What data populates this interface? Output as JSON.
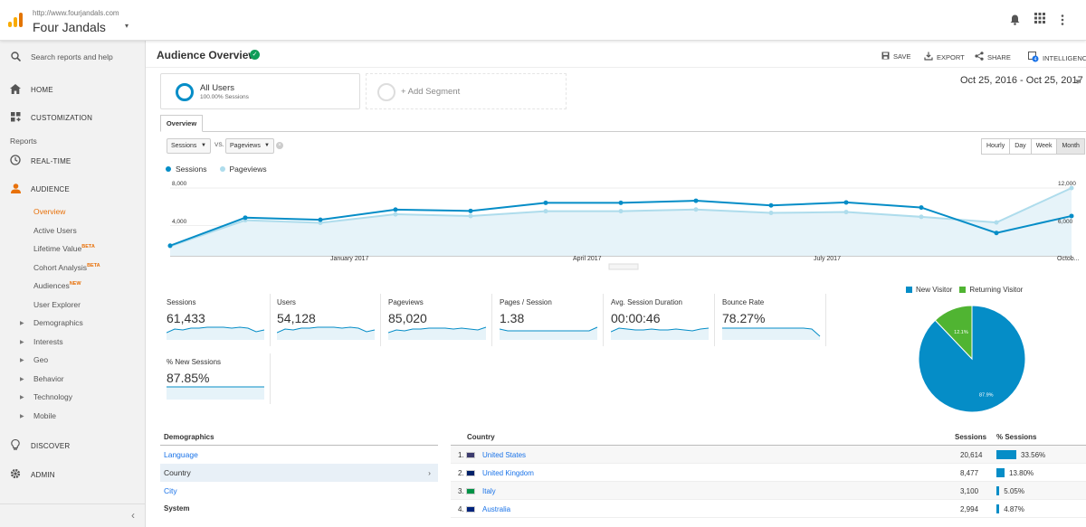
{
  "colors": {
    "primary": "#058dc7",
    "secondary": "#aedcec",
    "returning": "#50b432",
    "accent": "#e8710a"
  },
  "topbar": {
    "account_url": "http://www.fourjandals.com",
    "account_name": "Four Jandals",
    "caret": "▾",
    "icons": [
      "bell-icon",
      "apps-icon",
      "kebab-icon"
    ]
  },
  "search": {
    "placeholder": "Search reports and help"
  },
  "sidebar": {
    "home": "HOME",
    "customization": "CUSTOMIZATION",
    "reports_label": "Reports",
    "realtime": "REAL-TIME",
    "audience": "AUDIENCE",
    "audience_items": [
      {
        "label": "Overview",
        "badge": ""
      },
      {
        "label": "Active Users",
        "badge": ""
      },
      {
        "label": "Lifetime Value",
        "badge": "BETA"
      },
      {
        "label": "Cohort Analysis",
        "badge": "BETA"
      },
      {
        "label": "Audiences",
        "badge": "NEW"
      },
      {
        "label": "User Explorer",
        "badge": ""
      }
    ],
    "groups": [
      "Demographics",
      "Interests",
      "Geo",
      "Behavior",
      "Technology",
      "Mobile"
    ],
    "discover": "DISCOVER",
    "admin": "ADMIN",
    "collapse_glyph": "‹"
  },
  "header": {
    "title": "Audience Overview",
    "actions": {
      "save": "SAVE",
      "export": "EXPORT",
      "share": "SHARE",
      "intelligence": "INTELLIGENCE"
    }
  },
  "segment": {
    "name": "All Users",
    "sub": "100.00% Sessions",
    "add_label": "+ Add Segment"
  },
  "date_range": "Oct 25, 2016 - Oct 25, 2017",
  "tab": "Overview",
  "metric_select": {
    "primary": "Sessions",
    "vs": "VS.",
    "secondary": "Pageviews"
  },
  "granularity": [
    {
      "label": "Hourly",
      "active": false
    },
    {
      "label": "Day",
      "active": false
    },
    {
      "label": "Week",
      "active": false
    },
    {
      "label": "Month",
      "active": true
    }
  ],
  "chart_data": {
    "type": "line",
    "x": [
      "Oct 2016",
      "Nov 2016",
      "Dec 2016",
      "Jan 2017",
      "Feb 2017",
      "Mar 2017",
      "Apr 2017",
      "May 2017",
      "Jun 2017",
      "Jul 2017",
      "Aug 2017",
      "Sep 2017",
      "Oct 2017"
    ],
    "series": [
      {
        "name": "Sessions",
        "axis": "left",
        "values": [
          1200,
          4500,
          4250,
          5450,
          5300,
          6250,
          6250,
          6500,
          5950,
          6300,
          5700,
          2700,
          4700
        ]
      },
      {
        "name": "Pageviews",
        "axis": "right",
        "values": [
          1700,
          6300,
          5850,
          7350,
          7050,
          7900,
          7900,
          8200,
          7600,
          7750,
          6900,
          5900,
          12000
        ]
      }
    ],
    "left_axis": {
      "ticks": [
        "8,000",
        "4,000"
      ],
      "max": 8000,
      "min": 0
    },
    "right_axis": {
      "ticks": [
        "12,000",
        "6,000"
      ],
      "max": 12000,
      "min": 0
    },
    "x_tick_labels": [
      "January 2017",
      "April 2017",
      "July 2017",
      "Octob..."
    ]
  },
  "scorecards": [
    {
      "label": "Sessions",
      "value": "61,433"
    },
    {
      "label": "Users",
      "value": "54,128"
    },
    {
      "label": "Pageviews",
      "value": "85,020"
    },
    {
      "label": "Pages / Session",
      "value": "1.38"
    },
    {
      "label": "Avg. Session Duration",
      "value": "00:00:46"
    },
    {
      "label": "Bounce Rate",
      "value": "78.27%"
    },
    {
      "label": "% New Sessions",
      "value": "87.85%"
    }
  ],
  "pie": {
    "legend": [
      "New Visitor",
      "Returning Visitor"
    ],
    "slices": [
      {
        "label": "New Visitor",
        "value": 87.9,
        "text": "87.9%"
      },
      {
        "label": "Returning Visitor",
        "value": 12.1,
        "text": "12.1%"
      }
    ]
  },
  "demographics": {
    "heading": "Demographics",
    "items": [
      "Language",
      "Country",
      "City"
    ],
    "active": "Country",
    "system_heading": "System"
  },
  "country_table": {
    "headers": {
      "country": "Country",
      "sessions": "Sessions",
      "pct": "% Sessions"
    },
    "rows": [
      {
        "rank": "1.",
        "name": "United States",
        "sessions": "20,614",
        "pct": "33.56%",
        "share": 33.56
      },
      {
        "rank": "2.",
        "name": "United Kingdom",
        "sessions": "8,477",
        "pct": "13.80%",
        "share": 13.8
      },
      {
        "rank": "3.",
        "name": "Italy",
        "sessions": "3,100",
        "pct": "5.05%",
        "share": 5.05
      },
      {
        "rank": "4.",
        "name": "Australia",
        "sessions": "2,994",
        "pct": "4.87%",
        "share": 4.87
      }
    ]
  }
}
